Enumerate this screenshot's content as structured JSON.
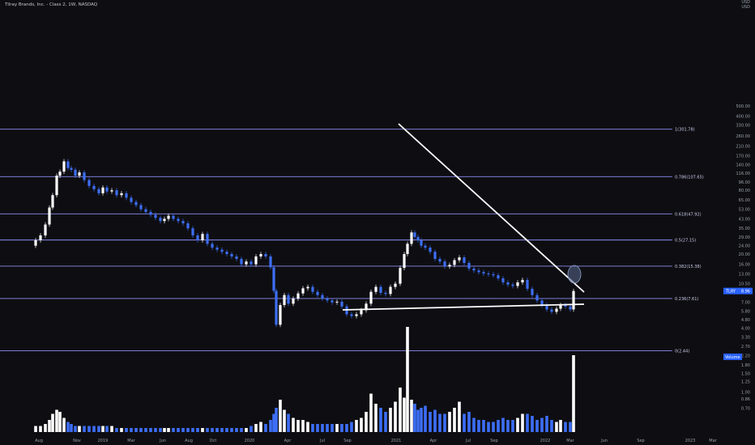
{
  "header": {
    "title": "Tilray Brands, Inc. - Class 2, 1W, NASDAQ",
    "unit_lines": [
      "USD",
      "USD"
    ]
  },
  "colors": {
    "background": "#0e0e12",
    "up": "#ffffff",
    "down": "#3d6ef5",
    "fib": "#8c8cf0",
    "trendline": "#ffffff",
    "label_bg": "#2962ff"
  },
  "chart_data": {
    "type": "candlestick",
    "symbol": "TLRY",
    "interval": "1W",
    "y_scale": "log",
    "ylim": [
      0.5,
      500
    ],
    "price_ticks": [
      "500.00",
      "400.00",
      "330.00",
      "260.00",
      "210.00",
      "170.00",
      "140.00",
      "116.00",
      "96.00",
      "80.00",
      "65.00",
      "53.00",
      "43.00",
      "35.00",
      "29.00",
      "24.00",
      "20.00",
      "16.00",
      "13.00",
      "10.50",
      "8.80",
      "7.00",
      "5.80",
      "4.80",
      "4.00",
      "3.30",
      "2.70",
      "2.20",
      "1.80",
      "1.50",
      "1.25",
      "1.00",
      "0.86",
      "0.70"
    ],
    "time_ticks": [
      "Aug",
      "Nov",
      "2019",
      "Mar",
      "Jun",
      "Aug",
      "Oct",
      "2020",
      "Apr",
      "Jul",
      "Sep",
      "2021",
      "Apr",
      "Jul",
      "Sep",
      "2022",
      "Mar",
      "Jun",
      "Sep",
      "2023",
      "Mar"
    ],
    "fib_levels": [
      {
        "label": "1(301.78)",
        "value": 301.78
      },
      {
        "label": "0.786(107.65)",
        "value": 107.65
      },
      {
        "label": "0.618(47.92)",
        "value": 47.92
      },
      {
        "label": "0.5(27.15)",
        "value": 27.15
      },
      {
        "label": "0.382(15.38)",
        "value": 15.38
      },
      {
        "label": "0.236(7.61)",
        "value": 7.61
      },
      {
        "label": "0(2.44)",
        "value": 2.44
      }
    ],
    "last_price": {
      "symbol": "TLRY",
      "value": "8.96"
    },
    "volume_label": "Volume",
    "series": [
      {
        "name": "price",
        "weeks": 194
      }
    ]
  }
}
